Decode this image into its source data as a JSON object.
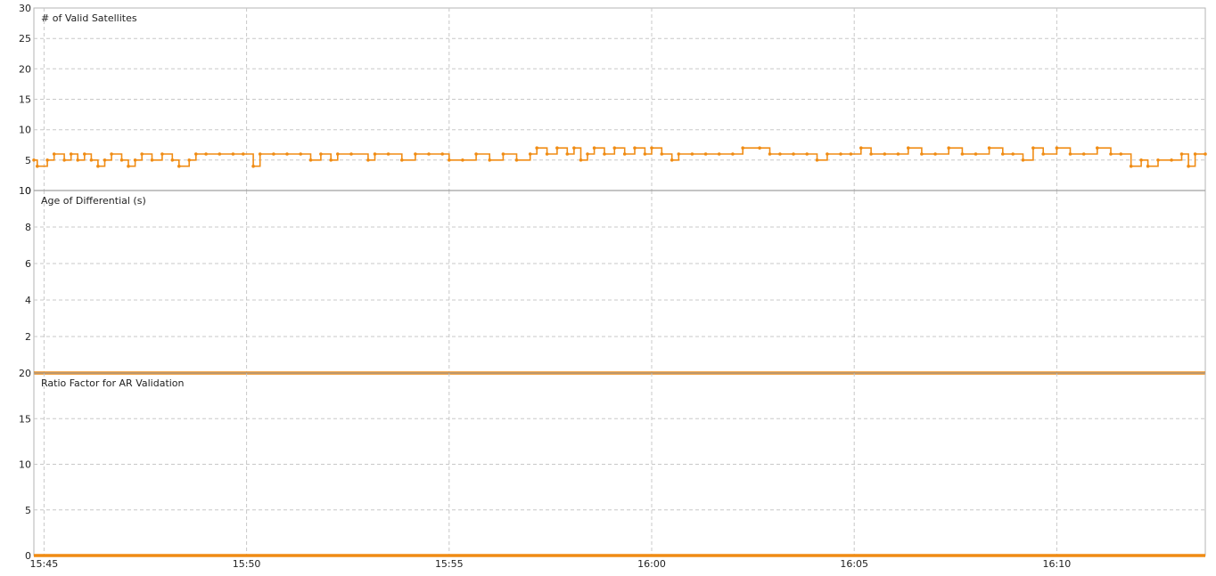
{
  "colors": {
    "series": "#f08c14",
    "grid": "#c8c8c8",
    "frame": "#b4b4b4"
  },
  "chart_data": [
    {
      "type": "line",
      "title": "# of Valid Satellites",
      "ylim": [
        0,
        30
      ],
      "y_ticks": [
        "0",
        "5",
        "10",
        "15",
        "20",
        "25",
        "30"
      ],
      "x_range": [
        "15:44:45",
        "16:13:40"
      ],
      "x_ticks": [
        "15:45",
        "15:50",
        "15:55",
        "16:00",
        "16:05",
        "16:10"
      ],
      "series": [
        {
          "values": [
            [
              "15:44:45",
              5
            ],
            [
              "15:44:50",
              4
            ],
            [
              "15:45:05",
              5
            ],
            [
              "15:45:15",
              6
            ],
            [
              "15:45:30",
              5
            ],
            [
              "15:45:40",
              6
            ],
            [
              "15:45:50",
              5
            ],
            [
              "15:46:00",
              6
            ],
            [
              "15:46:10",
              5
            ],
            [
              "15:46:20",
              4
            ],
            [
              "15:46:30",
              5
            ],
            [
              "15:46:40",
              6
            ],
            [
              "15:46:55",
              5
            ],
            [
              "15:47:05",
              4
            ],
            [
              "15:47:15",
              5
            ],
            [
              "15:47:25",
              6
            ],
            [
              "15:47:40",
              5
            ],
            [
              "15:47:55",
              6
            ],
            [
              "15:48:10",
              5
            ],
            [
              "15:48:20",
              4
            ],
            [
              "15:48:35",
              5
            ],
            [
              "15:48:45",
              6
            ],
            [
              "15:49:00",
              6
            ],
            [
              "15:49:20",
              6
            ],
            [
              "15:49:40",
              6
            ],
            [
              "15:49:55",
              6
            ],
            [
              "15:50:10",
              4
            ],
            [
              "15:50:20",
              6
            ],
            [
              "15:50:40",
              6
            ],
            [
              "15:51:00",
              6
            ],
            [
              "15:51:20",
              6
            ],
            [
              "15:51:35",
              5
            ],
            [
              "15:51:50",
              6
            ],
            [
              "15:52:05",
              5
            ],
            [
              "15:52:15",
              6
            ],
            [
              "15:52:35",
              6
            ],
            [
              "15:53:00",
              5
            ],
            [
              "15:53:10",
              6
            ],
            [
              "15:53:30",
              6
            ],
            [
              "15:53:50",
              5
            ],
            [
              "15:54:10",
              6
            ],
            [
              "15:54:30",
              6
            ],
            [
              "15:54:50",
              6
            ],
            [
              "15:55:00",
              5
            ],
            [
              "15:55:20",
              5
            ],
            [
              "15:55:40",
              6
            ],
            [
              "15:56:00",
              5
            ],
            [
              "15:56:20",
              6
            ],
            [
              "15:56:40",
              5
            ],
            [
              "15:57:00",
              6
            ],
            [
              "15:57:10",
              7
            ],
            [
              "15:57:25",
              6
            ],
            [
              "15:57:40",
              7
            ],
            [
              "15:57:55",
              6
            ],
            [
              "15:58:05",
              7
            ],
            [
              "15:58:15",
              5
            ],
            [
              "15:58:25",
              6
            ],
            [
              "15:58:35",
              7
            ],
            [
              "15:58:50",
              6
            ],
            [
              "15:59:05",
              7
            ],
            [
              "15:59:20",
              6
            ],
            [
              "15:59:35",
              7
            ],
            [
              "15:59:50",
              6
            ],
            [
              "16:00:00",
              7
            ],
            [
              "16:00:15",
              6
            ],
            [
              "16:00:30",
              5
            ],
            [
              "16:00:40",
              6
            ],
            [
              "16:01:00",
              6
            ],
            [
              "16:01:20",
              6
            ],
            [
              "16:01:40",
              6
            ],
            [
              "16:02:00",
              6
            ],
            [
              "16:02:15",
              7
            ],
            [
              "16:02:40",
              7
            ],
            [
              "16:02:55",
              6
            ],
            [
              "16:03:10",
              6
            ],
            [
              "16:03:30",
              6
            ],
            [
              "16:03:50",
              6
            ],
            [
              "16:04:05",
              5
            ],
            [
              "16:04:20",
              6
            ],
            [
              "16:04:40",
              6
            ],
            [
              "16:04:55",
              6
            ],
            [
              "16:05:10",
              7
            ],
            [
              "16:05:25",
              6
            ],
            [
              "16:05:45",
              6
            ],
            [
              "16:06:05",
              6
            ],
            [
              "16:06:20",
              7
            ],
            [
              "16:06:40",
              6
            ],
            [
              "16:07:00",
              6
            ],
            [
              "16:07:20",
              7
            ],
            [
              "16:07:40",
              6
            ],
            [
              "16:08:00",
              6
            ],
            [
              "16:08:20",
              7
            ],
            [
              "16:08:40",
              6
            ],
            [
              "16:08:55",
              6
            ],
            [
              "16:09:10",
              5
            ],
            [
              "16:09:25",
              7
            ],
            [
              "16:09:40",
              6
            ],
            [
              "16:10:00",
              7
            ],
            [
              "16:10:20",
              6
            ],
            [
              "16:10:40",
              6
            ],
            [
              "16:11:00",
              7
            ],
            [
              "16:11:20",
              6
            ],
            [
              "16:11:35",
              6
            ],
            [
              "16:11:50",
              4
            ],
            [
              "16:12:05",
              5
            ],
            [
              "16:12:15",
              4
            ],
            [
              "16:12:30",
              5
            ],
            [
              "16:12:50",
              5
            ],
            [
              "16:13:05",
              6
            ],
            [
              "16:13:15",
              4
            ],
            [
              "16:13:25",
              6
            ],
            [
              "16:13:40",
              6
            ]
          ]
        }
      ]
    },
    {
      "type": "line",
      "title": "Age of Differential (s)",
      "ylim": [
        0,
        10
      ],
      "y_ticks": [
        "2",
        "4",
        "6",
        "8",
        "10"
      ],
      "x_range": [
        "15:44:45",
        "16:13:40"
      ],
      "series": [
        {
          "values": [
            [
              "15:44:45",
              0
            ],
            [
              "16:13:40",
              0
            ]
          ]
        }
      ]
    },
    {
      "type": "line",
      "title": "Ratio Factor for AR Validation",
      "ylim": [
        0,
        20
      ],
      "y_ticks": [
        "0",
        "5",
        "10",
        "15",
        "20"
      ],
      "x_range": [
        "15:44:45",
        "16:13:40"
      ],
      "series": [
        {
          "values": [
            [
              "15:44:45",
              0
            ],
            [
              "16:13:40",
              0
            ]
          ]
        }
      ]
    }
  ]
}
